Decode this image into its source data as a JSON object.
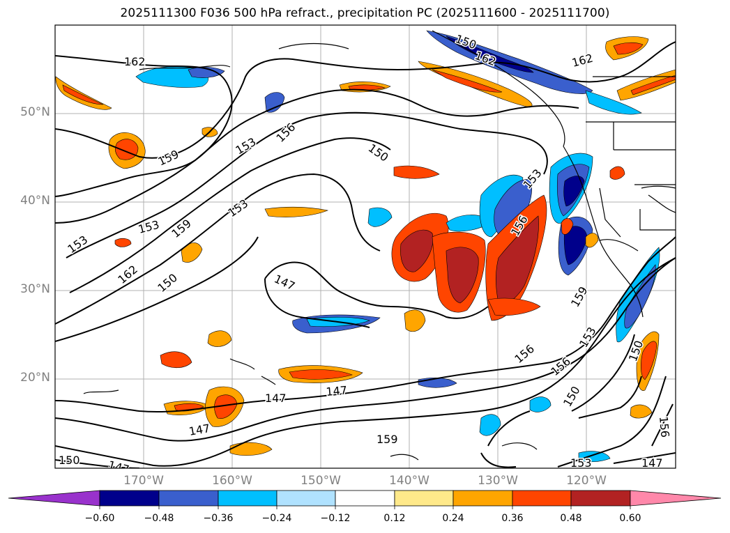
{
  "title": "2025111300 F036 500 hPa refract., precipitation PC (2025111600 - 2025111700)",
  "map": {
    "lat_ticks": [
      "50°N",
      "40°N",
      "30°N",
      "20°N"
    ],
    "lon_ticks": [
      "170°W",
      "160°W",
      "150°W",
      "140°W",
      "130°W",
      "120°W"
    ],
    "contour_labels": [
      "162",
      "159",
      "153",
      "156",
      "150",
      "153",
      "159",
      "153",
      "153",
      "162",
      "150",
      "147",
      "153",
      "156",
      "162",
      "159",
      "153",
      "156",
      "150",
      "147",
      "147",
      "147",
      "159",
      "150",
      "147",
      "156",
      "150",
      "153",
      "147",
      "156",
      "150",
      "162"
    ]
  },
  "colorbar": {
    "ticks": [
      "−0.60",
      "−0.48",
      "−0.36",
      "−0.24",
      "−0.12",
      "0.12",
      "0.24",
      "0.36",
      "0.48",
      "0.60"
    ],
    "colors": [
      "#9932CC",
      "#00008B",
      "#3A5FCD",
      "#00BFFF",
      "#B0E2FF",
      "#FFFFFF",
      "#FFE98A",
      "#FFA500",
      "#FF4500",
      "#B22222",
      "#FF88AA"
    ]
  }
}
